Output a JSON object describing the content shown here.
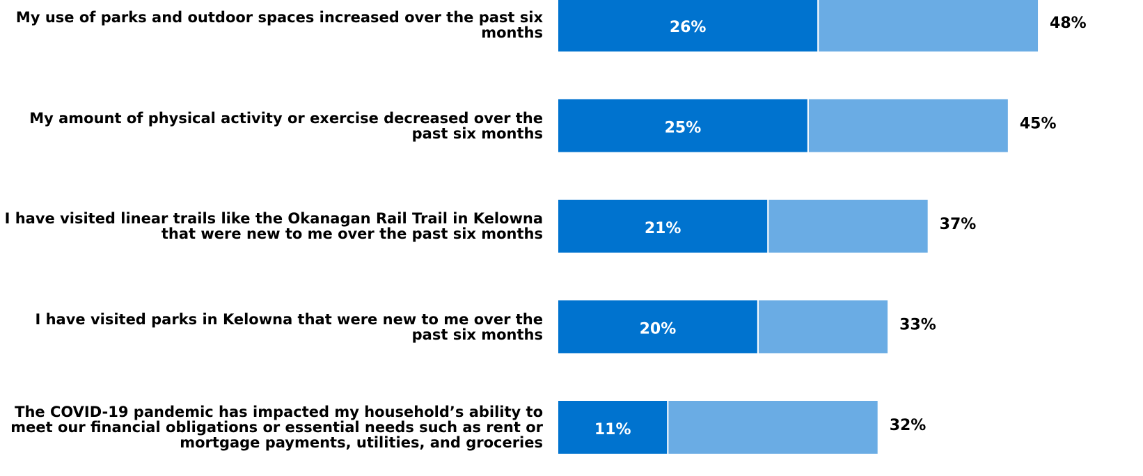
{
  "chart_data": {
    "type": "stacked_bar_horizontal",
    "categories": [
      "My use of parks and outdoor spaces increased over the past six months",
      "My amount of physical activity or exercise decreased over the past six months",
      "I have visited linear trails like the Okanagan Rail Trail in Kelowna that were new to me over the past six months",
      "I have visited parks in Kelowna that were new to me over the past six months",
      "The COVID-19 pandemic has impacted my household’s ability to meet our financial obligations or essential needs such as rent or mortgage payments, utilities, and groceries"
    ],
    "series": [
      {
        "color": "#0073cf",
        "values": [
          26,
          25,
          21,
          20,
          11
        ],
        "value_labels": [
          "26%",
          "25%",
          "21%",
          "20%",
          "11%"
        ]
      },
      {
        "color": "#6aace4",
        "values": [
          22,
          20,
          16,
          13,
          21
        ]
      }
    ],
    "totals": [
      48,
      45,
      37,
      33,
      32
    ],
    "total_labels": [
      "48%",
      "45%",
      "37%",
      "33%",
      "32%"
    ],
    "xlim": [
      0,
      58
    ]
  }
}
